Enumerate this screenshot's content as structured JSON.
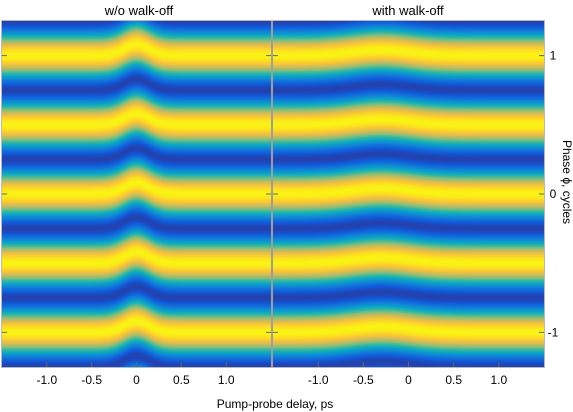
{
  "chart_data": [
    {
      "type": "heatmap",
      "title": "w/o walk-off",
      "xlabel": "Pump-probe delay, ps",
      "ylabel": "Phase ϕ, cycles",
      "xlim": [
        -1.5,
        1.5
      ],
      "ylim": [
        -1.25,
        1.25
      ],
      "xticks": [
        -1.0,
        -0.5,
        0,
        0.5,
        1.0
      ],
      "xtick_labels": [
        "-1.0",
        "-0.5",
        "0",
        "0.5",
        "1.0"
      ],
      "yticks": [
        -1,
        0,
        1
      ],
      "ytick_labels": [
        "-1",
        "0",
        "1"
      ],
      "fringe_period_cycles": 0.5,
      "peak_delay_ps": 0.0,
      "peak_phase_shift_cycles": 0.08,
      "shift_width_ps": 0.2,
      "colormap": "parula"
    },
    {
      "type": "heatmap",
      "title": "with walk-off",
      "xlabel": "Pump-probe delay, ps",
      "ylabel": "Phase ϕ, cycles",
      "xlim": [
        -1.5,
        1.5
      ],
      "ylim": [
        -1.25,
        1.25
      ],
      "xticks": [
        -1.0,
        -0.5,
        0,
        0.5,
        1.0
      ],
      "xtick_labels": [
        "-1.0",
        "-0.5",
        "0",
        "0.5",
        "1.0"
      ],
      "yticks": [
        -1,
        0,
        1
      ],
      "ytick_labels": [
        "-1",
        "0",
        "1"
      ],
      "fringe_period_cycles": 0.5,
      "peak_delay_ps": -0.3,
      "peak_phase_shift_cycles": 0.04,
      "shift_width_ps": 0.45,
      "colormap": "parula"
    }
  ],
  "colors": {
    "colormap_stops": [
      "#352a87",
      "#0f5cdd",
      "#1481d6",
      "#06a4ca",
      "#2eb7a4",
      "#87bf77",
      "#d1bb59",
      "#fec832",
      "#f9fb0e"
    ],
    "divider": "#9e9e9e",
    "tick": "#666666"
  }
}
